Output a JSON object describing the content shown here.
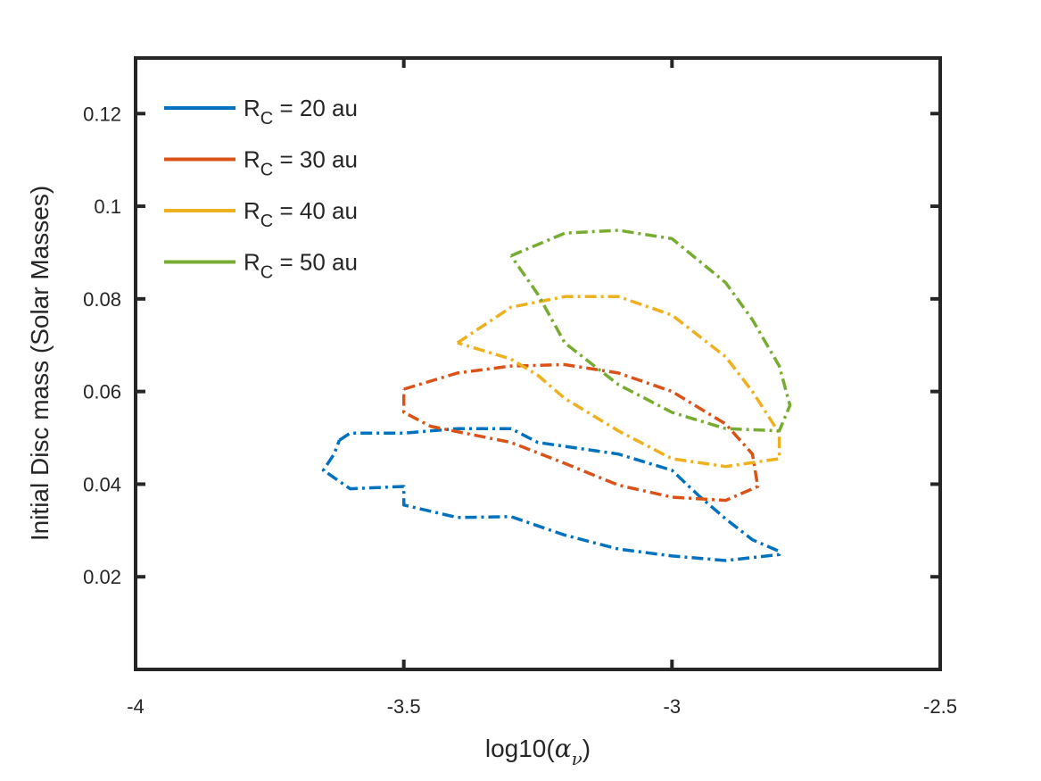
{
  "chart_data": {
    "type": "line",
    "title": "",
    "xlabel": {
      "prefix": "log10(",
      "symbol": "α",
      "subscript": "ν",
      "suffix": ")"
    },
    "ylabel": "Initial Disc mass (Solar Masses)",
    "xlim": [
      -4,
      -2.5
    ],
    "ylim": [
      0,
      0.132
    ],
    "xticks": [
      -4,
      -3.5,
      -3,
      -2.5
    ],
    "xtick_labels": [
      "-4",
      "-3.5",
      "-3",
      "-2.5"
    ],
    "yticks": [
      0.02,
      0.04,
      0.06,
      0.08,
      0.1,
      0.12
    ],
    "ytick_labels": [
      "0.02",
      "0.04",
      "0.06",
      "0.08",
      "0.1",
      "0.12"
    ],
    "grid": false,
    "legend_position": "top-left",
    "line_style": "dash-dot",
    "series": [
      {
        "name": "R_C = 20 au",
        "legend": {
          "main": "R",
          "sub": "C",
          "rest": " = 20 au"
        },
        "color": "#0072BD",
        "points": [
          [
            -3.62,
            0.0495
          ],
          [
            -3.6,
            0.051
          ],
          [
            -3.5,
            0.051
          ],
          [
            -3.4,
            0.052
          ],
          [
            -3.3,
            0.052
          ],
          [
            -3.25,
            0.049
          ],
          [
            -3.1,
            0.0465
          ],
          [
            -3.0,
            0.043
          ],
          [
            -2.95,
            0.0375
          ],
          [
            -2.9,
            0.0325
          ],
          [
            -2.85,
            0.028
          ],
          [
            -2.8,
            0.0255
          ],
          [
            -2.8,
            0.0248
          ],
          [
            -2.9,
            0.0235
          ],
          [
            -3.0,
            0.0245
          ],
          [
            -3.1,
            0.026
          ],
          [
            -3.2,
            0.029
          ],
          [
            -3.3,
            0.033
          ],
          [
            -3.4,
            0.0328
          ],
          [
            -3.5,
            0.0355
          ],
          [
            -3.5,
            0.0395
          ],
          [
            -3.6,
            0.039
          ],
          [
            -3.65,
            0.043
          ],
          [
            -3.63,
            0.0465
          ],
          [
            -3.62,
            0.0495
          ]
        ]
      },
      {
        "name": "R_C = 30 au",
        "legend": {
          "main": "R",
          "sub": "C",
          "rest": " = 30 au"
        },
        "color": "#D95319",
        "points": [
          [
            -3.5,
            0.0605
          ],
          [
            -3.4,
            0.064
          ],
          [
            -3.3,
            0.0655
          ],
          [
            -3.2,
            0.0658
          ],
          [
            -3.1,
            0.064
          ],
          [
            -3.0,
            0.06
          ],
          [
            -2.9,
            0.053
          ],
          [
            -2.85,
            0.0465
          ],
          [
            -2.84,
            0.0395
          ],
          [
            -2.9,
            0.0365
          ],
          [
            -3.0,
            0.0372
          ],
          [
            -3.1,
            0.0398
          ],
          [
            -3.2,
            0.0445
          ],
          [
            -3.3,
            0.049
          ],
          [
            -3.45,
            0.0525
          ],
          [
            -3.5,
            0.0555
          ],
          [
            -3.5,
            0.0605
          ]
        ]
      },
      {
        "name": "R_C = 40 au",
        "legend": {
          "main": "R",
          "sub": "C",
          "rest": " = 40 au"
        },
        "color": "#EDB120",
        "points": [
          [
            -3.4,
            0.0705
          ],
          [
            -3.3,
            0.0782
          ],
          [
            -3.2,
            0.0805
          ],
          [
            -3.1,
            0.0805
          ],
          [
            -3.0,
            0.0765
          ],
          [
            -2.9,
            0.0675
          ],
          [
            -2.85,
            0.06
          ],
          [
            -2.8,
            0.051
          ],
          [
            -2.8,
            0.0455
          ],
          [
            -2.9,
            0.0438
          ],
          [
            -3.0,
            0.0455
          ],
          [
            -3.1,
            0.0515
          ],
          [
            -3.2,
            0.0585
          ],
          [
            -3.25,
            0.0635
          ],
          [
            -3.3,
            0.067
          ],
          [
            -3.4,
            0.0705
          ]
        ]
      },
      {
        "name": "R_C = 50 au",
        "legend": {
          "main": "R",
          "sub": "C",
          "rest": " = 50 au"
        },
        "color": "#77AC30",
        "points": [
          [
            -3.3,
            0.0893
          ],
          [
            -3.2,
            0.0942
          ],
          [
            -3.1,
            0.0948
          ],
          [
            -3.0,
            0.093
          ],
          [
            -2.9,
            0.0835
          ],
          [
            -2.85,
            0.0755
          ],
          [
            -2.8,
            0.0655
          ],
          [
            -2.78,
            0.057
          ],
          [
            -2.8,
            0.0515
          ],
          [
            -2.9,
            0.052
          ],
          [
            -3.0,
            0.0555
          ],
          [
            -3.1,
            0.0615
          ],
          [
            -3.2,
            0.0705
          ],
          [
            -3.25,
            0.081
          ],
          [
            -3.3,
            0.0893
          ]
        ]
      }
    ]
  }
}
